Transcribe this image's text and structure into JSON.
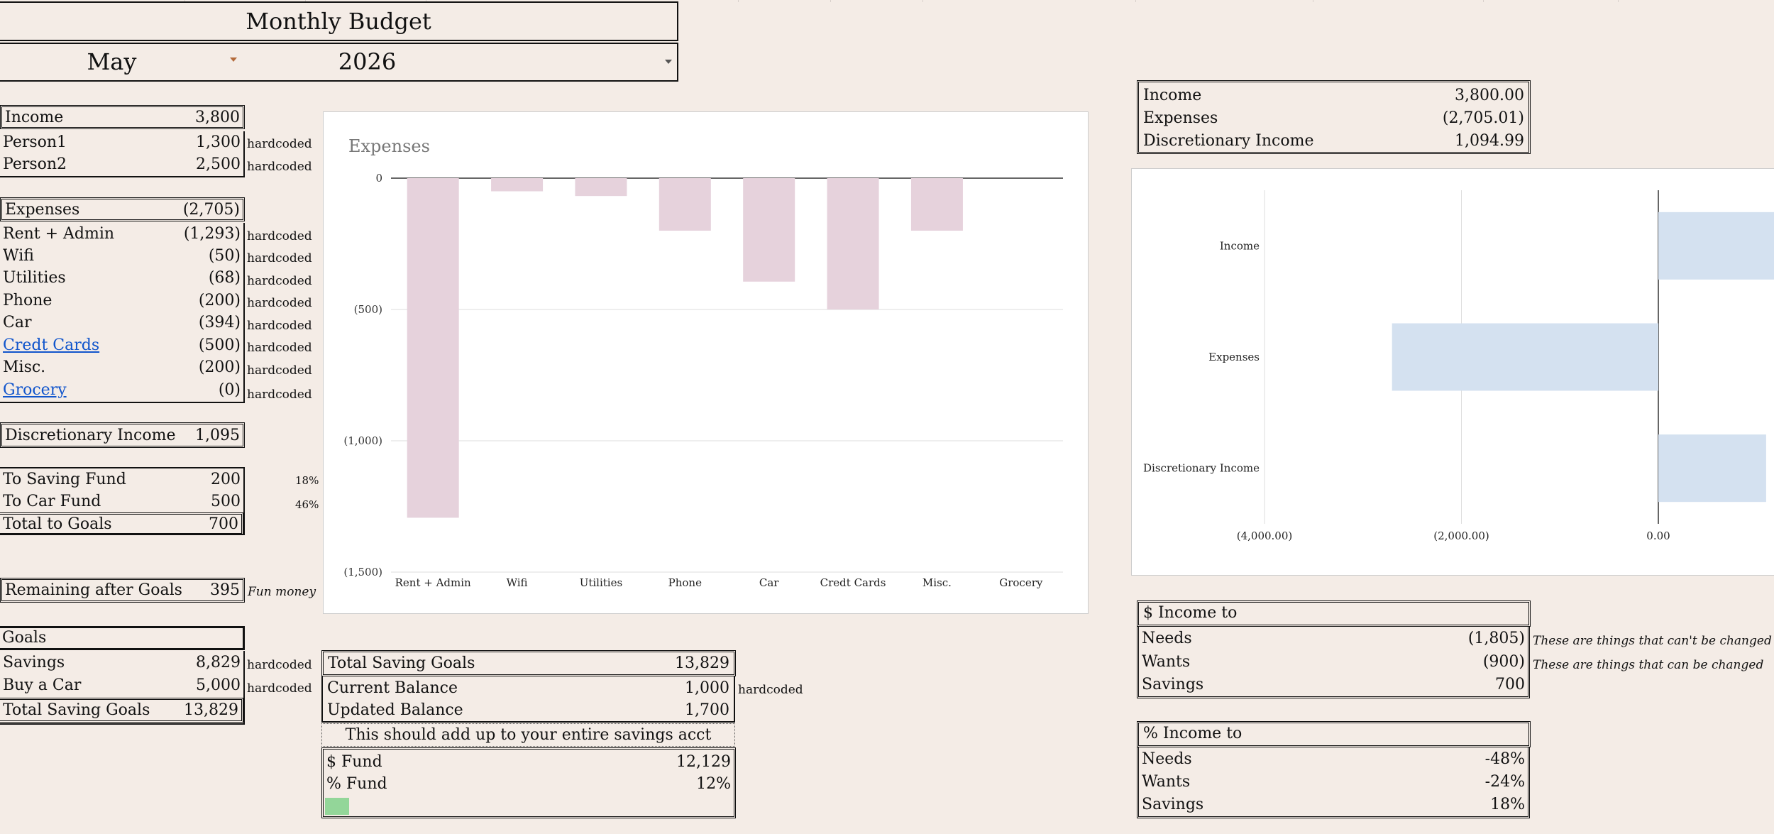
{
  "header": {
    "title": "Monthly Budget",
    "month": "May",
    "year": "2026"
  },
  "income_section": {
    "label": "Income",
    "total": "3,800",
    "rows": [
      {
        "label": "Person1",
        "value": "1,300",
        "note": "hardcoded"
      },
      {
        "label": "Person2",
        "value": "2,500",
        "note": "hardcoded"
      }
    ]
  },
  "expenses_section": {
    "label": "Expenses",
    "total": "(2,705)",
    "rows": [
      {
        "label": "Rent + Admin",
        "value": "(1,293)",
        "note": "hardcoded"
      },
      {
        "label": "Wifi",
        "value": "(50)",
        "note": "hardcoded"
      },
      {
        "label": "Utilities",
        "value": "(68)",
        "note": "hardcoded"
      },
      {
        "label": "Phone",
        "value": "(200)",
        "note": "hardcoded"
      },
      {
        "label": "Car",
        "value": "(394)",
        "note": "hardcoded"
      },
      {
        "label": "Credt Cards",
        "value": "(500)",
        "note": "hardcoded"
      },
      {
        "label": "Misc.",
        "value": "(200)",
        "note": "hardcoded"
      },
      {
        "label": "Grocery",
        "value": "(0)",
        "note": "hardcoded"
      }
    ]
  },
  "discretionary": {
    "label": "Discretionary Income",
    "value": "1,095"
  },
  "goals_alloc": {
    "rows": [
      {
        "label": "To Saving Fund",
        "value": "200",
        "pct": "18%"
      },
      {
        "label": "To Car Fund",
        "value": "500",
        "pct": "46%"
      }
    ],
    "total_label": "Total to Goals",
    "total_value": "700"
  },
  "remaining": {
    "label": "Remaining after Goals",
    "value": "395",
    "note": "Fun money"
  },
  "goals": {
    "label": "Goals",
    "rows": [
      {
        "label": "Savings",
        "value": "8,829",
        "note": "hardcoded"
      },
      {
        "label": "Buy a Car",
        "value": "5,000",
        "note": "hardcoded"
      }
    ],
    "total_label": "Total Saving Goals",
    "total_value": "13,829"
  },
  "savings_panel": {
    "total_label": "Total Saving Goals",
    "total_value": "13,829",
    "current_label": "Current Balance",
    "current_value": "1,000",
    "current_note": "hardcoded",
    "updated_label": "Updated Balance",
    "updated_value": "1,700",
    "message": "This should add up to your entire savings acct",
    "fund_label": "$ Fund",
    "fund_value": "12,129",
    "pct_label": "% Fund",
    "pct_value": "12%",
    "progress_fraction": 0.12
  },
  "summary": {
    "rows": [
      {
        "label": "Income",
        "value": "3,800.00"
      },
      {
        "label": "Expenses",
        "value": "(2,705.01)"
      },
      {
        "label": "Discretionary Income",
        "value": "1,094.99"
      }
    ]
  },
  "income_to_dollars": {
    "header": "$ Income to",
    "rows": [
      {
        "label": "Needs",
        "value": "(1,805)",
        "note": "These are things that can't be changed"
      },
      {
        "label": "Wants",
        "value": "(900)",
        "note": "These are things that can be changed"
      },
      {
        "label": "Savings",
        "value": "700",
        "note": ""
      }
    ]
  },
  "income_to_pct": {
    "header": "% Income to",
    "rows": [
      {
        "label": "Needs",
        "value": "-48%"
      },
      {
        "label": "Wants",
        "value": "-24%"
      },
      {
        "label": "Savings",
        "value": "18%"
      }
    ]
  },
  "colors": {
    "expense_bar": "#e6d2dc",
    "summary_bar": "#d4e1f0",
    "progress_fill": "#93d699",
    "link": "#1155cc"
  },
  "chart_data": [
    {
      "type": "bar",
      "title": "Expenses",
      "categories": [
        "Rent + Admin",
        "Wifi",
        "Utilities",
        "Phone",
        "Car",
        "Credt Cards",
        "Misc.",
        "Grocery"
      ],
      "values": [
        -1293,
        -50,
        -68,
        -200,
        -394,
        -500,
        -200,
        0
      ],
      "ylim": [
        -1500,
        0
      ],
      "yticks": [
        0,
        -500,
        -1000,
        -1500
      ],
      "ytick_labels": [
        "0",
        "(500)",
        "(1,000)",
        "(1,500)"
      ],
      "grid": true,
      "color": "#e6d2dc"
    },
    {
      "type": "bar",
      "orientation": "horizontal",
      "categories": [
        "Income",
        "Expenses",
        "Discretionary Income"
      ],
      "values": [
        3800,
        -2705.01,
        1094.99
      ],
      "xticks": [
        -4000,
        -2000,
        0
      ],
      "xtick_labels": [
        "(4,000.00)",
        "(2,000.00)",
        "0.00"
      ],
      "grid": true,
      "color": "#d4e1f0"
    }
  ]
}
